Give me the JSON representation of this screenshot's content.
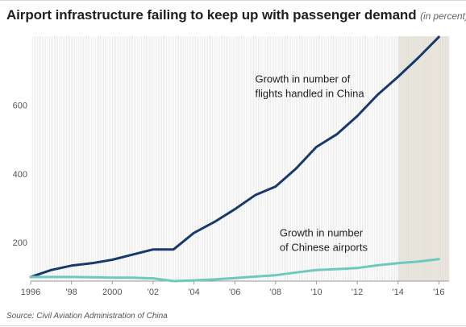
{
  "title": {
    "main": "Airport infrastructure failing to keep up with passenger demand",
    "note": "(in percent)"
  },
  "source": "Source: Civil Aviation Administration of China",
  "colors": {
    "flights_line": "#163a6b",
    "airports_line": "#6fc8c0",
    "shade": "#ece7dc",
    "grid": "#dadada"
  },
  "chart_data": {
    "type": "line",
    "x": [
      1996,
      1997,
      1998,
      1999,
      2000,
      2001,
      2002,
      2003,
      2004,
      2005,
      2006,
      2007,
      2008,
      2009,
      2010,
      2011,
      2012,
      2013,
      2014,
      2015,
      2016
    ],
    "x_tick_values": [
      1996,
      1998,
      2000,
      2002,
      2004,
      2006,
      2008,
      2010,
      2012,
      2014,
      2016
    ],
    "x_tick_labels": [
      "1996",
      "'98",
      "2000",
      "'02",
      "'04",
      "'06",
      "'08",
      "'10",
      "'12",
      "'14",
      "'16"
    ],
    "y_tick_values": [
      200,
      400,
      600
    ],
    "y_tick_labels": [
      "200",
      "400",
      "600"
    ],
    "xlim": [
      1996,
      2016.5
    ],
    "ylim": [
      88,
      800
    ],
    "grid": "vertical",
    "shaded_range": [
      2014,
      2016.5
    ],
    "series": [
      {
        "values": [
          100,
          120,
          133,
          140,
          150,
          165,
          180,
          180,
          228,
          260,
          297,
          338,
          363,
          415,
          478,
          515,
          568,
          630,
          682,
          738,
          798
        ]
      },
      {
        "values": [
          100,
          100,
          100,
          99,
          98,
          98,
          96,
          88,
          90,
          93,
          97,
          101,
          105,
          113,
          120,
          123,
          126,
          134,
          140,
          145,
          152
        ]
      }
    ],
    "annotations": [
      {
        "lines": [
          "Growth in number of",
          "flights handled in China"
        ]
      },
      {
        "lines": [
          "Growth in number",
          "of Chinese airports"
        ]
      }
    ]
  }
}
